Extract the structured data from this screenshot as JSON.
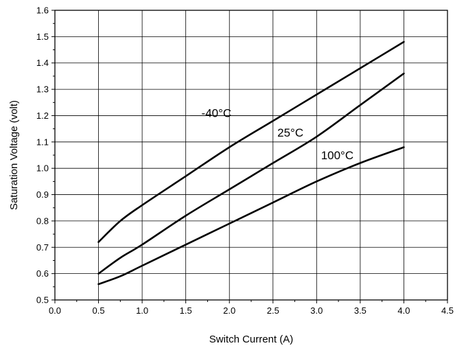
{
  "chart_data": {
    "type": "line",
    "title": "",
    "xlabel": "Switch Current (A)",
    "ylabel": "Saturation Voltage (volt)",
    "xlim": [
      0.0,
      4.5
    ],
    "ylim": [
      0.5,
      1.6
    ],
    "x_ticks": [
      "0.0",
      "0.5",
      "1.0",
      "1.5",
      "2.0",
      "2.5",
      "3.0",
      "3.5",
      "4.0",
      "4.5"
    ],
    "y_ticks": [
      "0.5",
      "0.6",
      "0.7",
      "0.8",
      "0.9",
      "1.0",
      "1.1",
      "1.2",
      "1.3",
      "1.4",
      "1.5",
      "1.6"
    ],
    "grid": true,
    "legend": "none",
    "series": [
      {
        "name": "-40°C",
        "color": "#000000",
        "x": [
          0.5,
          0.75,
          1.0,
          1.5,
          2.0,
          2.5,
          3.0,
          3.5,
          4.0
        ],
        "y": [
          0.72,
          0.8,
          0.86,
          0.97,
          1.08,
          1.18,
          1.28,
          1.38,
          1.48
        ]
      },
      {
        "name": "25°C",
        "color": "#000000",
        "x": [
          0.5,
          0.75,
          1.0,
          1.5,
          2.0,
          2.5,
          3.0,
          3.5,
          4.0
        ],
        "y": [
          0.6,
          0.66,
          0.71,
          0.82,
          0.92,
          1.02,
          1.12,
          1.24,
          1.36
        ]
      },
      {
        "name": "100°C",
        "color": "#000000",
        "x": [
          0.5,
          0.75,
          1.0,
          1.5,
          2.0,
          2.5,
          3.0,
          3.5,
          4.0
        ],
        "y": [
          0.56,
          0.59,
          0.63,
          0.71,
          0.79,
          0.87,
          0.95,
          1.02,
          1.08
        ]
      }
    ]
  }
}
